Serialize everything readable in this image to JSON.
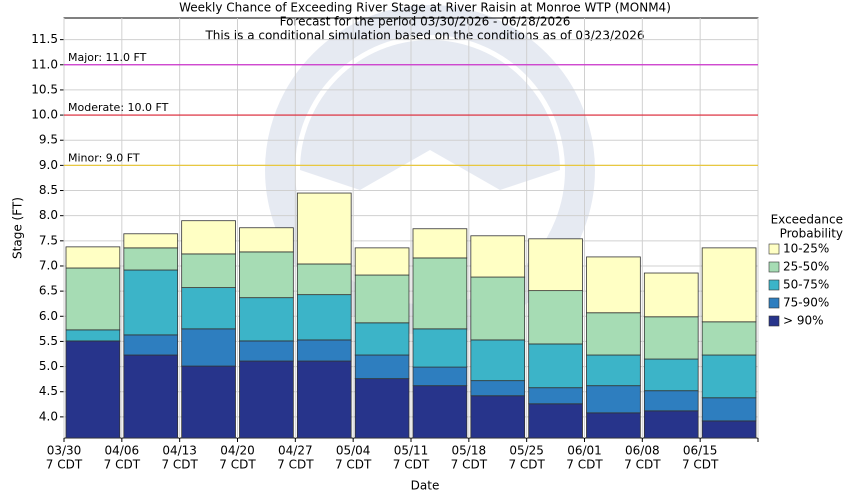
{
  "chart_data": {
    "type": "exceedance_bar",
    "title": [
      "Weekly Chance of Exceeding River Stage at River Raisin at Monroe WTP (MONM4)",
      "Forecast for the period 03/30/2026 - 06/28/2026",
      "This is a conditional simulation based on the conditions as of 03/23/2026"
    ],
    "x_label": "Date",
    "y_label": "Stage (FT)",
    "categories": [
      "03/30",
      "04/06",
      "04/13",
      "04/20",
      "04/27",
      "05/04",
      "05/11",
      "05/18",
      "05/25",
      "06/01",
      "06/08",
      "06/15"
    ],
    "x_sublabel": "7 CDT",
    "series": [
      {
        "name": "> 90%",
        "color": "#27348b",
        "values": [
          5.51,
          5.23,
          5.01,
          5.11,
          5.11,
          4.76,
          4.62,
          4.42,
          4.26,
          4.08,
          4.12,
          3.92
        ]
      },
      {
        "name": "75-90%",
        "color": "#2e7ebf",
        "values": [
          5.51,
          5.63,
          5.75,
          5.51,
          5.53,
          5.23,
          4.99,
          4.72,
          4.58,
          4.62,
          4.52,
          4.38
        ]
      },
      {
        "name": "50-75%",
        "color": "#3cb4c8",
        "values": [
          5.73,
          6.92,
          6.57,
          6.37,
          6.43,
          5.87,
          5.75,
          5.53,
          5.45,
          5.23,
          5.15,
          5.23
        ]
      },
      {
        "name": "25-50%",
        "color": "#a6dcb4",
        "values": [
          6.96,
          7.36,
          7.24,
          7.28,
          7.04,
          6.82,
          7.16,
          6.78,
          6.51,
          6.07,
          5.99,
          5.89
        ]
      },
      {
        "name": "10-25%",
        "color": "#ffffc4",
        "values": [
          7.38,
          7.64,
          7.9,
          7.76,
          8.45,
          7.36,
          7.74,
          7.6,
          7.54,
          7.18,
          6.86,
          7.36
        ]
      }
    ],
    "legend_title": [
      "Exceedance",
      "Probability"
    ],
    "legend_position": "right",
    "thresholds": [
      {
        "label": "Major: 11.0 FT",
        "value": 11.0,
        "color": "#cc33cc"
      },
      {
        "label": "Moderate: 10.0 FT",
        "value": 10.0,
        "color": "#dd2233"
      },
      {
        "label": "Minor: 9.0 FT",
        "value": 9.0,
        "color": "#e8c840"
      }
    ],
    "ylim": [
      3.58,
      11.93
    ],
    "yticks": [
      {
        "value": 4,
        "label": "4.0"
      },
      {
        "value": 4.5,
        "label": "4.5"
      },
      {
        "value": 5,
        "label": "5.0"
      },
      {
        "value": 5.5,
        "label": "5.5"
      },
      {
        "value": 6,
        "label": "6.0"
      },
      {
        "value": 6.5,
        "label": "6.5"
      },
      {
        "value": 7,
        "label": "7.0"
      },
      {
        "value": 7.5,
        "label": "7.5"
      },
      {
        "value": 8,
        "label": "8.0"
      },
      {
        "value": 8.5,
        "label": "8.5"
      },
      {
        "value": 9,
        "label": "9.0"
      },
      {
        "value": 9.5,
        "label": "9.5"
      },
      {
        "value": 10,
        "label": "10.0"
      },
      {
        "value": 10.5,
        "label": "10.5"
      },
      {
        "value": 11,
        "label": "11.0"
      },
      {
        "value": 11.5,
        "label": "11.5"
      }
    ],
    "grid": true
  }
}
